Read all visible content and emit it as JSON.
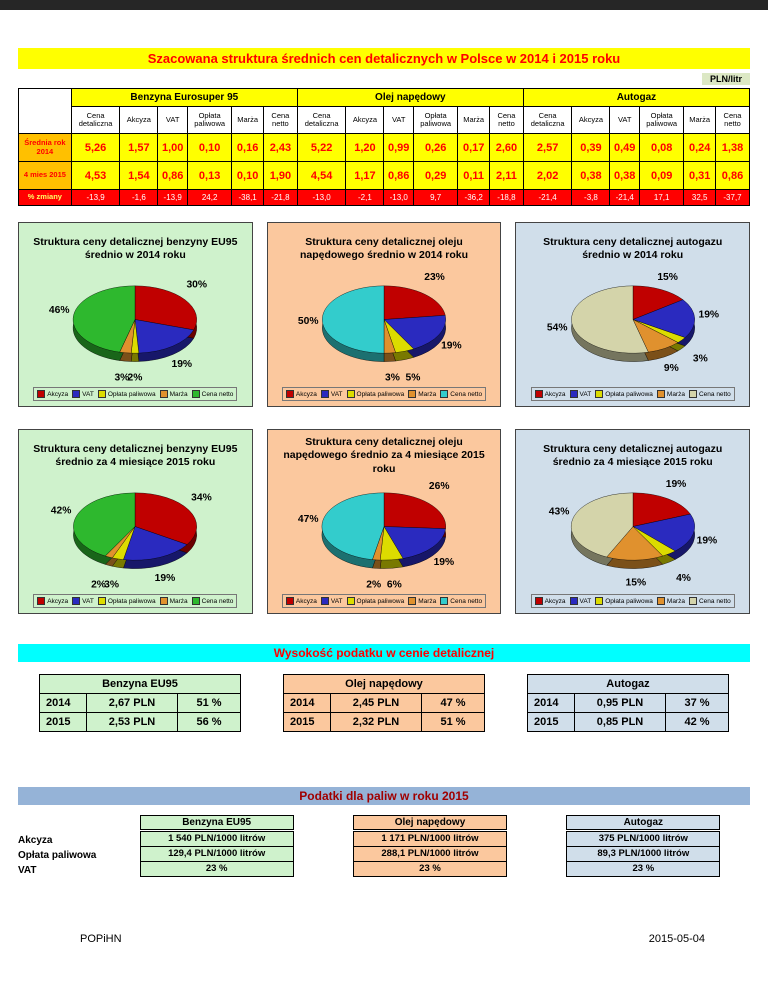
{
  "header": {
    "title": "Szacowana struktura średnich cen detalicznych w Polsce w 2014 i 2015 roku",
    "unit": "PLN/litr"
  },
  "price_table": {
    "groups": [
      {
        "name": "Benzyna Eurosuper 95"
      },
      {
        "name": "Olej napędowy"
      },
      {
        "name": "Autogaz"
      }
    ],
    "columns": [
      "Cena detaliczna",
      "Akcyza",
      "VAT",
      "Opłata paliwowa",
      "Marża",
      "Cena netto"
    ],
    "rows": [
      {
        "label": "Średnia rok 2014",
        "type": "data",
        "benzyna": [
          "5,26",
          "1,57",
          "1,00",
          "0,10",
          "0,16",
          "2,43"
        ],
        "olej": [
          "5,22",
          "1,20",
          "0,99",
          "0,26",
          "0,17",
          "2,60"
        ],
        "autogaz": [
          "2,57",
          "0,39",
          "0,49",
          "0,08",
          "0,24",
          "1,38"
        ]
      },
      {
        "label": "4 mies 2015",
        "type": "data",
        "benzyna": [
          "4,53",
          "1,54",
          "0,86",
          "0,13",
          "0,10",
          "1,90"
        ],
        "olej": [
          "4,54",
          "1,17",
          "0,86",
          "0,29",
          "0,11",
          "2,11"
        ],
        "autogaz": [
          "2,02",
          "0,38",
          "0,38",
          "0,09",
          "0,31",
          "0,86"
        ]
      },
      {
        "label": "% zmiany",
        "type": "change",
        "benzyna": [
          "-13,9",
          "-1,6",
          "-13,9",
          "24,2",
          "-38,1",
          "-21,8"
        ],
        "olej": [
          "-13,0",
          "-2,1",
          "-13,0",
          "9,7",
          "-36,2",
          "-18,8"
        ],
        "autogaz": [
          "-21,4",
          "-3,8",
          "-21,4",
          "17,1",
          "32,5",
          "-37,7"
        ]
      }
    ]
  },
  "chart_data": [
    {
      "type": "pie",
      "title": "Struktura ceny detalicznej benzyny EU95 średnio w 2014 roku",
      "labels": [
        "Akcyza",
        "VAT",
        "Opłata paliwowa",
        "Marża",
        "Cena netto"
      ],
      "values": [
        30,
        19,
        2,
        3,
        46
      ],
      "colors": [
        "#C00000",
        "#2A2ABF",
        "#DCDC00",
        "#E0912E",
        "#2EB82E"
      ],
      "panel_color": "#CFF2CC"
    },
    {
      "type": "pie",
      "title": "Struktura ceny detalicznej oleju napędowego średnio w 2014 roku",
      "labels": [
        "Akcyza",
        "VAT",
        "Opłata paliwowa",
        "Marża",
        "Cena netto"
      ],
      "values": [
        23,
        19,
        5,
        3,
        50
      ],
      "colors": [
        "#C00000",
        "#2A2ABF",
        "#DCDC00",
        "#E0912E",
        "#33CCCC"
      ],
      "panel_color": "#FBC89E"
    },
    {
      "type": "pie",
      "title": "Struktura ceny detalicznej autogazu średnio w 2014 roku",
      "labels": [
        "Akcyza",
        "VAT",
        "Opłata paliwowa",
        "Marża",
        "Cena netto"
      ],
      "values": [
        15,
        19,
        3,
        9,
        54
      ],
      "colors": [
        "#C00000",
        "#2A2ABF",
        "#DCDC00",
        "#E0912E",
        "#D4D4AA"
      ],
      "panel_color": "#D0DEEA"
    },
    {
      "type": "pie",
      "title": "Struktura ceny detalicznej benzyny EU95 średnio za 4 miesiące 2015 roku",
      "labels": [
        "Akcyza",
        "VAT",
        "Opłata paliwowa",
        "Marża",
        "Cena netto"
      ],
      "values": [
        34,
        19,
        3,
        2,
        42
      ],
      "colors": [
        "#C00000",
        "#2A2ABF",
        "#DCDC00",
        "#E0912E",
        "#2EB82E"
      ],
      "panel_color": "#CFF2CC"
    },
    {
      "type": "pie",
      "title": "Struktura ceny detalicznej oleju napędowego średnio za 4 miesiące 2015 roku",
      "labels": [
        "Akcyza",
        "VAT",
        "Opłata paliwowa",
        "Marża",
        "Cena netto"
      ],
      "values": [
        26,
        19,
        6,
        2,
        47
      ],
      "colors": [
        "#C00000",
        "#2A2ABF",
        "#DCDC00",
        "#E0912E",
        "#33CCCC"
      ],
      "panel_color": "#FBC89E"
    },
    {
      "type": "pie",
      "title": "Struktura ceny detalicznej autogazu średnio za 4 miesiące 2015 roku",
      "labels": [
        "Akcyza",
        "VAT",
        "Opłata paliwowa",
        "Marża",
        "Cena netto"
      ],
      "values": [
        19,
        19,
        4,
        15,
        43
      ],
      "colors": [
        "#C00000",
        "#2A2ABF",
        "#DCDC00",
        "#E0912E",
        "#D4D4AA"
      ],
      "panel_color": "#D0DEEA"
    }
  ],
  "tax_in_price": {
    "banner": "Wysokość podatku w cenie detalicznej",
    "tables": [
      {
        "title": "Benzyna EU95",
        "color": "#CFF2CC",
        "rows": [
          [
            "2014",
            "2,67 PLN",
            "51 %"
          ],
          [
            "2015",
            "2,53 PLN",
            "56 %"
          ]
        ]
      },
      {
        "title": "Olej napędowy",
        "color": "#FBC89E",
        "rows": [
          [
            "2014",
            "2,45 PLN",
            "47 %"
          ],
          [
            "2015",
            "2,32 PLN",
            "51 %"
          ]
        ]
      },
      {
        "title": "Autogaz",
        "color": "#D0DEEA",
        "rows": [
          [
            "2014",
            "0,95 PLN",
            "37 %"
          ],
          [
            "2015",
            "0,85 PLN",
            "42 %"
          ]
        ]
      }
    ]
  },
  "taxes_2015": {
    "banner": "Podatki dla paliw w roku 2015",
    "row_labels": [
      "Akcyza",
      "Opłata paliwowa",
      "VAT"
    ],
    "boxes": [
      {
        "title": "Benzyna EU95",
        "color": "#CFF2CC",
        "values": [
          "1 540 PLN/1000 litrów",
          "129,4 PLN/1000 litrów",
          "23 %"
        ]
      },
      {
        "title": "Olej napędowy",
        "color": "#FBC89E",
        "values": [
          "1 171 PLN/1000 litrów",
          "288,1 PLN/1000 litrów",
          "23 %"
        ]
      },
      {
        "title": "Autogaz",
        "color": "#D0DEEA",
        "values": [
          "375 PLN/1000 litrów",
          "89,3 PLN/1000 litrów",
          "23 %"
        ]
      }
    ]
  },
  "footer": {
    "org": "POPiHN",
    "date": "2015-05-04"
  }
}
